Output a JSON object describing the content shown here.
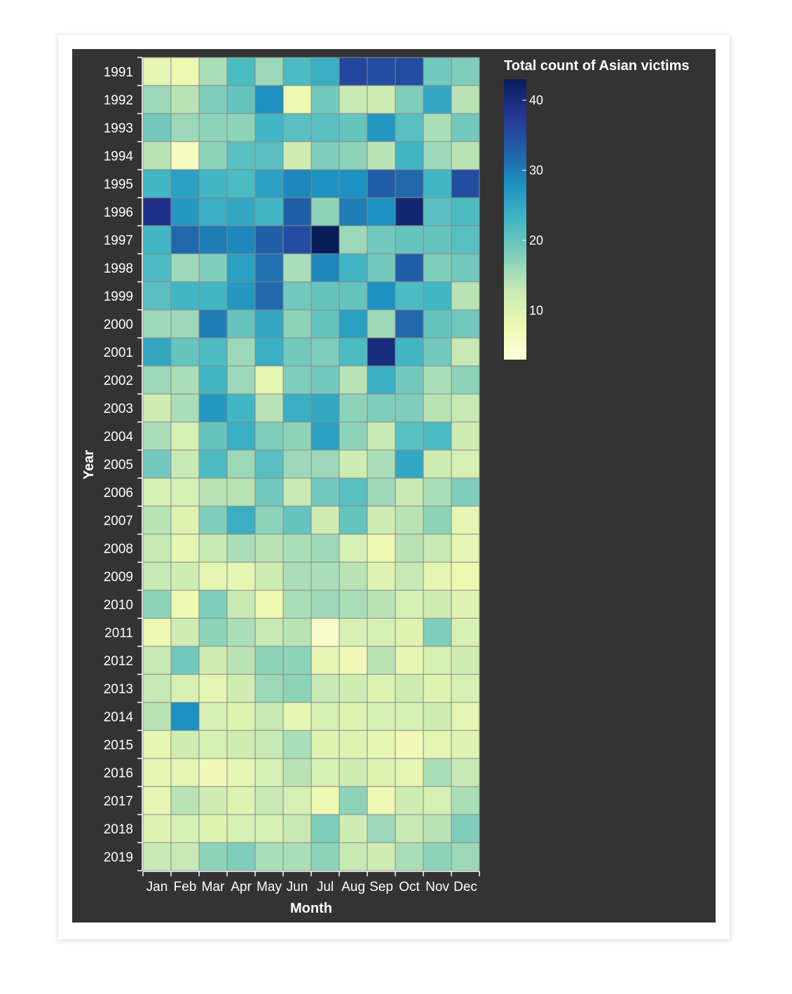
{
  "chart_data": {
    "type": "heatmap",
    "title": "",
    "xlabel": "Month",
    "ylabel": "Year",
    "legend_title": "Total count of Asian victims",
    "legend_ticks": [
      10,
      20,
      30,
      40
    ],
    "color_domain": [
      3,
      43
    ],
    "color_scheme": [
      "#ffffd9",
      "#edf8b1",
      "#c7e9b4",
      "#7fcdbb",
      "#41b6c4",
      "#1d91c0",
      "#225ea8",
      "#253494",
      "#081d58"
    ],
    "x": [
      "Jan",
      "Feb",
      "Mar",
      "Apr",
      "May",
      "Jun",
      "Jul",
      "Aug",
      "Sep",
      "Oct",
      "Nov",
      "Dec"
    ],
    "y": [
      "1991",
      "1992",
      "1993",
      "1994",
      "1995",
      "1996",
      "1997",
      "1998",
      "1999",
      "2000",
      "2001",
      "2002",
      "2003",
      "2004",
      "2005",
      "2006",
      "2007",
      "2008",
      "2009",
      "2010",
      "2011",
      "2012",
      "2013",
      "2014",
      "2015",
      "2016",
      "2017",
      "2018",
      "2019"
    ],
    "values": [
      [
        9,
        8,
        15,
        22,
        16,
        22,
        24,
        36,
        35,
        35,
        19,
        18
      ],
      [
        16,
        14,
        18,
        20,
        28,
        8,
        19,
        13,
        12,
        18,
        25,
        14
      ],
      [
        19,
        16,
        17,
        17,
        23,
        21,
        21,
        20,
        27,
        21,
        15,
        19
      ],
      [
        14,
        6,
        17,
        21,
        21,
        12,
        18,
        17,
        14,
        23,
        16,
        14
      ],
      [
        23,
        26,
        23,
        22,
        26,
        29,
        28,
        28,
        33,
        32,
        23,
        35
      ],
      [
        39,
        27,
        24,
        25,
        23,
        33,
        17,
        30,
        28,
        41,
        21,
        22
      ],
      [
        23,
        32,
        30,
        29,
        33,
        35,
        43,
        16,
        19,
        20,
        20,
        21
      ],
      [
        22,
        16,
        18,
        26,
        31,
        15,
        29,
        23,
        19,
        33,
        18,
        19
      ],
      [
        21,
        23,
        23,
        27,
        32,
        19,
        20,
        20,
        28,
        22,
        23,
        14
      ],
      [
        16,
        16,
        30,
        20,
        25,
        17,
        20,
        26,
        16,
        32,
        20,
        19
      ],
      [
        25,
        20,
        22,
        16,
        24,
        19,
        18,
        22,
        40,
        23,
        19,
        13
      ],
      [
        16,
        15,
        23,
        16,
        9,
        18,
        19,
        14,
        24,
        19,
        15,
        17
      ],
      [
        12,
        15,
        27,
        23,
        14,
        24,
        25,
        17,
        18,
        18,
        14,
        13
      ],
      [
        15,
        11,
        20,
        24,
        18,
        17,
        26,
        17,
        13,
        21,
        22,
        12
      ],
      [
        19,
        13,
        22,
        16,
        21,
        16,
        16,
        12,
        15,
        25,
        12,
        11
      ],
      [
        11,
        11,
        14,
        14,
        19,
        13,
        19,
        21,
        16,
        13,
        15,
        18
      ],
      [
        14,
        10,
        18,
        24,
        17,
        20,
        12,
        20,
        12,
        14,
        17,
        9
      ],
      [
        13,
        9,
        13,
        15,
        14,
        15,
        16,
        11,
        8,
        14,
        13,
        9
      ],
      [
        13,
        12,
        9,
        9,
        12,
        15,
        15,
        14,
        10,
        13,
        9,
        8
      ],
      [
        17,
        8,
        18,
        13,
        8,
        15,
        16,
        15,
        14,
        11,
        12,
        10
      ],
      [
        8,
        12,
        17,
        15,
        13,
        14,
        5,
        11,
        11,
        10,
        18,
        11
      ],
      [
        13,
        19,
        12,
        14,
        17,
        17,
        9,
        7,
        14,
        9,
        11,
        12
      ],
      [
        13,
        11,
        9,
        12,
        16,
        17,
        13,
        12,
        10,
        12,
        10,
        11
      ],
      [
        14,
        28,
        11,
        10,
        13,
        9,
        11,
        10,
        11,
        11,
        12,
        9
      ],
      [
        9,
        12,
        11,
        12,
        13,
        15,
        10,
        10,
        9,
        7,
        9,
        10
      ],
      [
        9,
        9,
        7,
        9,
        11,
        14,
        11,
        12,
        10,
        9,
        15,
        13
      ],
      [
        9,
        14,
        12,
        10,
        13,
        11,
        8,
        17,
        8,
        12,
        11,
        15
      ],
      [
        10,
        11,
        10,
        11,
        11,
        13,
        18,
        12,
        16,
        13,
        14,
        18
      ],
      [
        13,
        13,
        17,
        18,
        15,
        15,
        17,
        13,
        12,
        15,
        17,
        16
      ]
    ]
  }
}
